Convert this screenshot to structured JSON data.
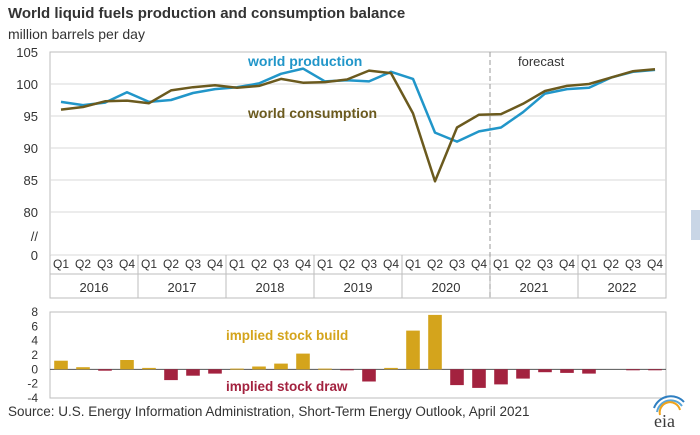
{
  "title": "World liquid fuels production and consumption balance",
  "subtitle": "million barrels per day",
  "source": "Source: U.S. Energy Information Administration, Short-Term Energy Outlook, April 2021",
  "logo_text": "eia",
  "colors": {
    "production": "#2196c9",
    "consumption": "#6b5a1e",
    "build": "#d4a41c",
    "draw": "#a3223f",
    "grid": "#d9d9d9",
    "text": "#333333",
    "forecast_line": "#999999"
  },
  "chart_data": [
    {
      "type": "line",
      "title": "World liquid fuels production and consumption balance",
      "ylabel": "million barrels per day",
      "ylim": [
        0,
        105
      ],
      "axis_break_between": [
        0,
        80
      ],
      "yticks": [
        "105",
        "100",
        "95",
        "90",
        "85",
        "80",
        "//",
        "0"
      ],
      "quarters": [
        "Q1",
        "Q2",
        "Q3",
        "Q4",
        "Q1",
        "Q2",
        "Q3",
        "Q4",
        "Q1",
        "Q2",
        "Q3",
        "Q4",
        "Q1",
        "Q2",
        "Q3",
        "Q4",
        "Q1",
        "Q2",
        "Q3",
        "Q4",
        "Q1",
        "Q2",
        "Q3",
        "Q4",
        "Q1",
        "Q2",
        "Q3",
        "Q4"
      ],
      "years": [
        "2016",
        "2017",
        "2018",
        "2019",
        "2020",
        "2021",
        "2022"
      ],
      "forecast_label": "forecast",
      "forecast_start_index": 20,
      "series": [
        {
          "name": "world production",
          "values": [
            97.2,
            96.7,
            97.1,
            98.7,
            97.2,
            97.5,
            98.6,
            99.2,
            99.5,
            100.1,
            101.6,
            102.4,
            100.4,
            100.6,
            100.4,
            101.9,
            100.8,
            92.4,
            91.0,
            92.6,
            93.2,
            95.6,
            98.5,
            99.2,
            99.4,
            101.0,
            101.9,
            102.2
          ]
        },
        {
          "name": "world consumption",
          "values": [
            96.0,
            96.4,
            97.3,
            97.4,
            97.0,
            99.0,
            99.5,
            99.8,
            99.4,
            99.7,
            100.8,
            100.2,
            100.3,
            100.7,
            102.1,
            101.7,
            95.4,
            84.8,
            93.2,
            95.2,
            95.3,
            96.9,
            98.9,
            99.7,
            100.0,
            101.0,
            102.0,
            102.3
          ]
        }
      ]
    },
    {
      "type": "bar",
      "title": "implied stock build / draw",
      "ylim": [
        -4,
        8
      ],
      "yticks": [
        "8",
        "6",
        "4",
        "2",
        "0",
        "-2",
        "-4"
      ],
      "build_label": "implied stock build",
      "draw_label": "implied stock draw",
      "values": [
        1.2,
        0.3,
        -0.2,
        1.3,
        0.2,
        -1.5,
        -0.9,
        -0.6,
        0.1,
        0.4,
        0.8,
        2.2,
        0.1,
        -0.1,
        -1.7,
        0.2,
        5.4,
        7.6,
        -2.2,
        -2.6,
        -2.1,
        -1.3,
        -0.4,
        -0.5,
        -0.6,
        0.0,
        -0.1,
        -0.1
      ]
    }
  ]
}
